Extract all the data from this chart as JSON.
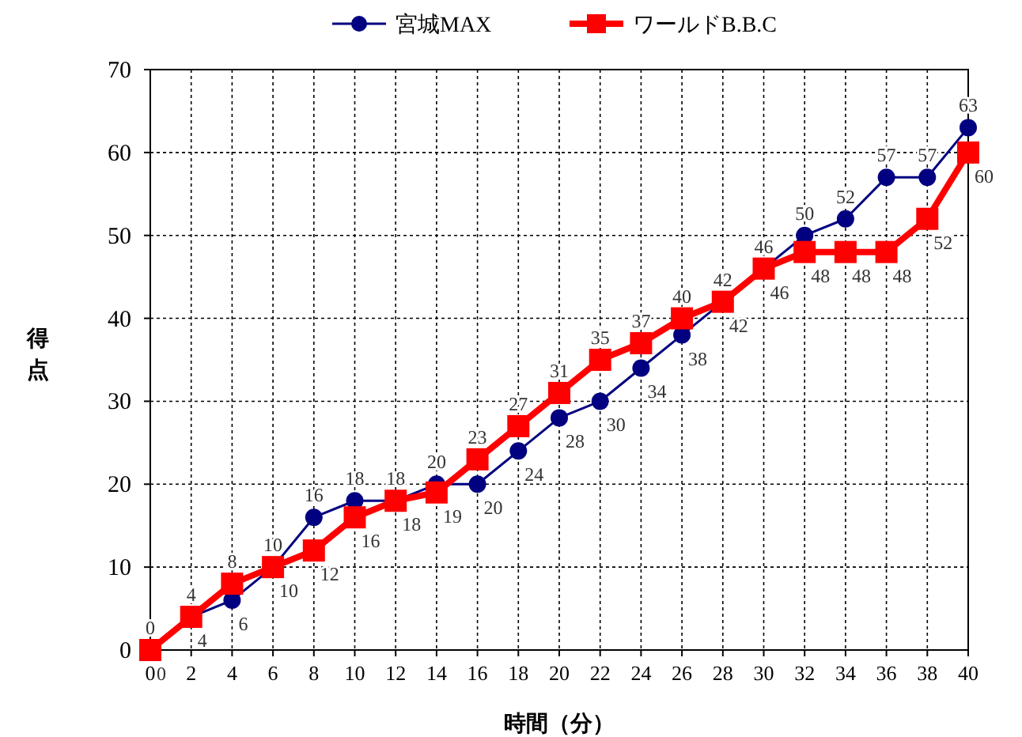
{
  "chart_data": {
    "type": "line",
    "xlabel": "時間（分）",
    "ylabel": "得点",
    "x": [
      0,
      2,
      4,
      6,
      8,
      10,
      12,
      14,
      16,
      18,
      20,
      22,
      24,
      26,
      28,
      30,
      32,
      34,
      36,
      38,
      40
    ],
    "series": [
      {
        "name": "宮城MAX",
        "color": "#000080",
        "marker": "circle",
        "values": [
          0,
          4,
          6,
          10,
          16,
          18,
          18,
          20,
          20,
          24,
          28,
          30,
          34,
          38,
          42,
          46,
          50,
          52,
          57,
          57,
          63
        ]
      },
      {
        "name": "ワールドB.B.C",
        "color": "#ff0000",
        "marker": "square",
        "values": [
          0,
          4,
          8,
          10,
          12,
          16,
          18,
          19,
          23,
          27,
          31,
          35,
          37,
          40,
          42,
          46,
          48,
          48,
          48,
          52,
          60
        ]
      }
    ],
    "xlim": [
      0,
      40
    ],
    "xticks": [
      0,
      2,
      4,
      6,
      8,
      10,
      12,
      14,
      16,
      18,
      20,
      22,
      24,
      26,
      28,
      30,
      32,
      34,
      36,
      38,
      40
    ],
    "ylim": [
      0,
      70
    ],
    "yticks": [
      0,
      10,
      20,
      30,
      40,
      50,
      60,
      70
    ],
    "grid": true,
    "legend": "top",
    "data_labels": true,
    "line_style": "solid"
  }
}
